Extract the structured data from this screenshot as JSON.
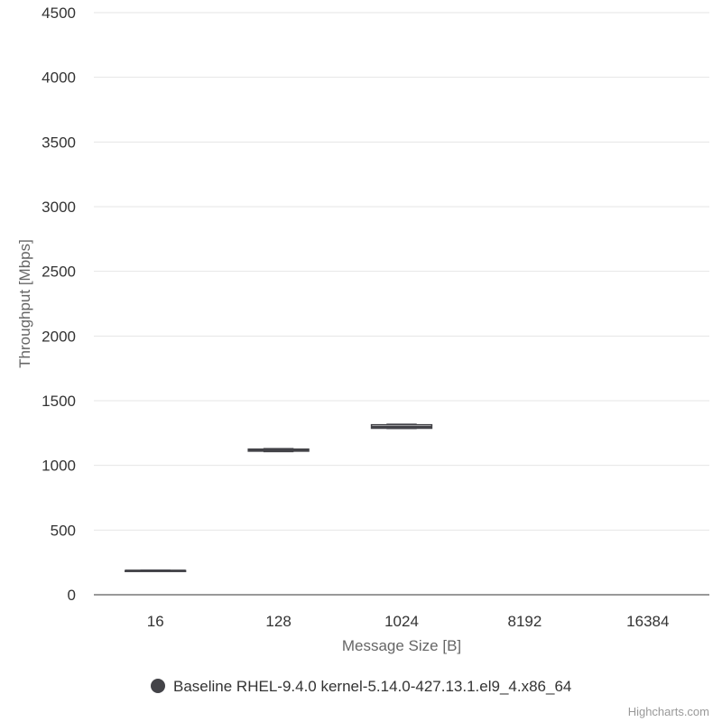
{
  "chart_data": {
    "type": "boxplot",
    "title": "",
    "xlabel": "Message Size [B]",
    "ylabel": "Throughput [Mbps]",
    "categories": [
      "16",
      "128",
      "1024",
      "8192",
      "16384"
    ],
    "ylim": [
      0,
      4500
    ],
    "yticks": [
      0,
      500,
      1000,
      1500,
      2000,
      2500,
      3000,
      3500,
      4000,
      4500
    ],
    "grid": true,
    "legend_position": "bottom-center",
    "series": [
      {
        "name": "Baseline RHEL-9.4.0 kernel-5.14.0-427.13.1.el9_4.x86_64",
        "color": "#434348",
        "boxes": [
          {
            "category": "16",
            "low": 185,
            "q1": 185,
            "median": 186,
            "q3": 187,
            "high": 188
          },
          {
            "category": "128",
            "low": 1108,
            "q1": 1110,
            "median": 1118,
            "q3": 1126,
            "high": 1128
          },
          {
            "category": "1024",
            "low": 1287,
            "q1": 1287,
            "median": 1297,
            "q3": 1314,
            "high": 1316
          }
        ]
      }
    ]
  },
  "credits": "Highcharts.com"
}
